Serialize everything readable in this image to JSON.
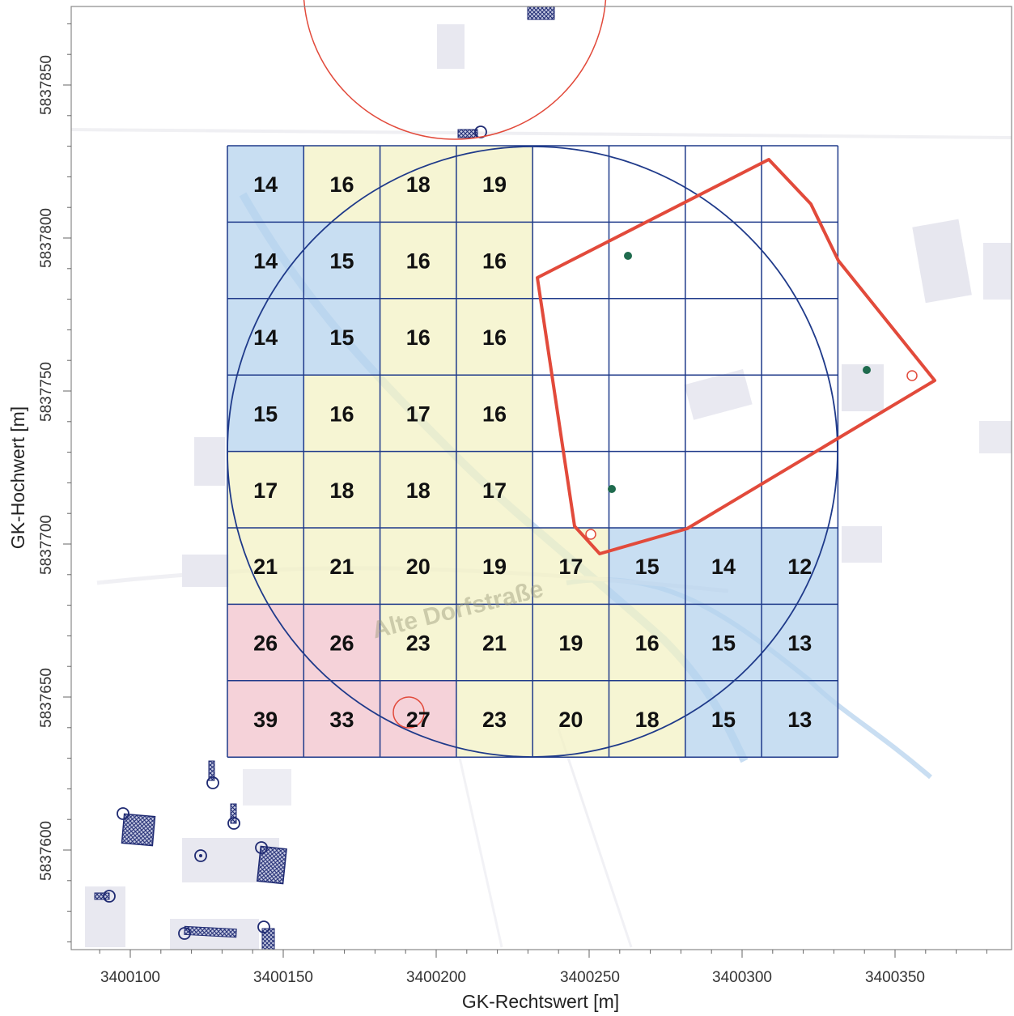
{
  "axes": {
    "x_title": "GK-Rechtswert [m]",
    "y_title": "GK-Hochwert [m]",
    "x_ticks": [
      "3400100",
      "3400150",
      "3400200",
      "3400250",
      "3400300",
      "3400350"
    ],
    "y_ticks": [
      "5837850",
      "5837800",
      "5837750",
      "5837700",
      "5837650",
      "5837600"
    ]
  },
  "map_label": "Alte Dorfstraße",
  "grid": {
    "colors": {
      "blue": "#b5d3ee",
      "yellow": "#f3f2c4",
      "red": "#f2c3cc",
      "empty": "none"
    },
    "rows": [
      {
        "values": [
          "14",
          "16",
          "18",
          "19",
          "",
          "",
          "",
          ""
        ],
        "classes": [
          "blue",
          "yellow",
          "yellow",
          "yellow",
          "empty",
          "empty",
          "empty",
          "empty"
        ]
      },
      {
        "values": [
          "14",
          "15",
          "16",
          "16",
          "",
          "",
          "",
          ""
        ],
        "classes": [
          "blue",
          "blue",
          "yellow",
          "yellow",
          "empty",
          "empty",
          "empty",
          "empty"
        ]
      },
      {
        "values": [
          "14",
          "15",
          "16",
          "16",
          "",
          "",
          "",
          ""
        ],
        "classes": [
          "blue",
          "blue",
          "yellow",
          "yellow",
          "empty",
          "empty",
          "empty",
          "empty"
        ]
      },
      {
        "values": [
          "15",
          "16",
          "17",
          "16",
          "",
          "",
          "",
          ""
        ],
        "classes": [
          "blue",
          "yellow",
          "yellow",
          "yellow",
          "empty",
          "empty",
          "empty",
          "empty"
        ]
      },
      {
        "values": [
          "17",
          "18",
          "18",
          "17",
          "",
          "",
          "",
          ""
        ],
        "classes": [
          "yellow",
          "yellow",
          "yellow",
          "yellow",
          "empty",
          "empty",
          "empty",
          "empty"
        ]
      },
      {
        "values": [
          "21",
          "21",
          "20",
          "19",
          "17",
          "15",
          "14",
          "12"
        ],
        "classes": [
          "yellow",
          "yellow",
          "yellow",
          "yellow",
          "yellow",
          "blue",
          "blue",
          "blue"
        ]
      },
      {
        "values": [
          "26",
          "26",
          "23",
          "21",
          "19",
          "16",
          "15",
          "13"
        ],
        "classes": [
          "red",
          "red",
          "yellow",
          "yellow",
          "yellow",
          "yellow",
          "blue",
          "blue"
        ]
      },
      {
        "values": [
          "39",
          "33",
          "27",
          "23",
          "20",
          "18",
          "15",
          "13"
        ],
        "classes": [
          "red",
          "red",
          "red",
          "yellow",
          "yellow",
          "yellow",
          "blue",
          "blue"
        ]
      }
    ]
  }
}
